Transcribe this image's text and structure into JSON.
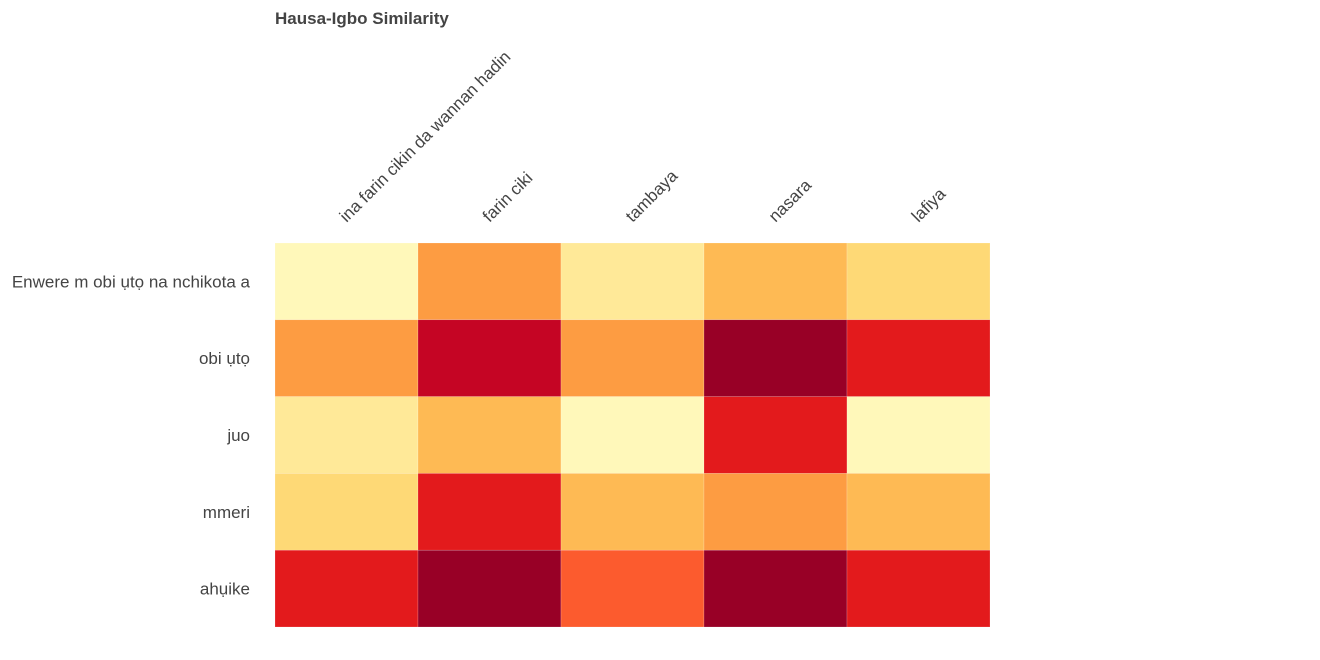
{
  "chart_data": {
    "type": "heatmap",
    "title": "Hausa-Igbo Similarity",
    "x_categories": [
      "ina farin cikin da wannan hadin",
      "farin ciki",
      "tambaya",
      "nasara",
      "lafiya"
    ],
    "y_categories": [
      "Enwere m obi ụtọ na nchikota a",
      "obi ụtọ",
      "juo",
      "mmeri",
      "ahụike"
    ],
    "values": [
      [
        0.05,
        0.45,
        0.15,
        0.35,
        0.25
      ],
      [
        0.45,
        0.85,
        0.45,
        0.95,
        0.75
      ],
      [
        0.15,
        0.35,
        0.05,
        0.75,
        0.05
      ],
      [
        0.25,
        0.75,
        0.35,
        0.45,
        0.35
      ],
      [
        0.75,
        0.95,
        0.6,
        0.95,
        0.75
      ]
    ],
    "value_range": [
      0,
      1
    ],
    "colorscale": "YlOrRd",
    "colorscale_stops": [
      "#ffffcc",
      "#ffeda0",
      "#fed976",
      "#feb24c",
      "#fd8d3c",
      "#fc4e2a",
      "#e31a1c",
      "#bd0026",
      "#800026"
    ],
    "x_axis_position": "top",
    "x_tick_rotation_deg": -45,
    "legend": "none",
    "grid": false
  }
}
